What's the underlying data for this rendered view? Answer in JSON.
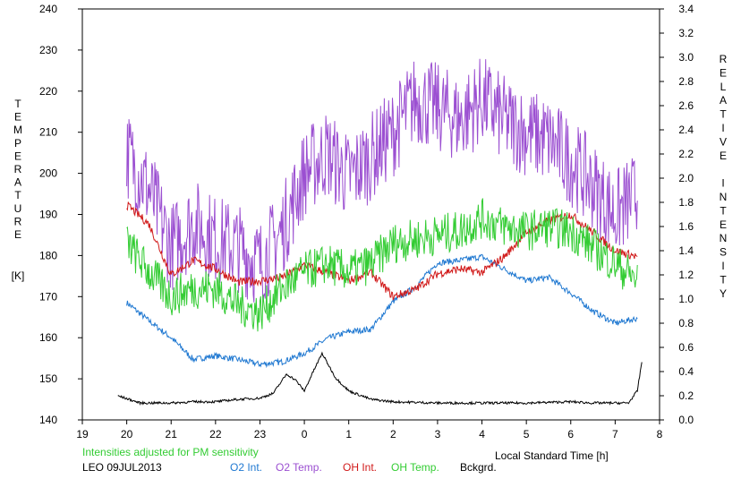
{
  "chart_data": {
    "type": "line",
    "x_unit": "h (local standard time, 19 to 32 = 8 next day)",
    "x_ticks": [
      "19",
      "20",
      "21",
      "22",
      "23",
      "0",
      "1",
      "2",
      "3",
      "4",
      "5",
      "6",
      "7",
      "8"
    ],
    "xlim": [
      19,
      32
    ],
    "y_left": {
      "label": "TEMPERATURE",
      "unit": "[K]",
      "ticks": [
        "140",
        "150",
        "160",
        "170",
        "180",
        "190",
        "200",
        "210",
        "220",
        "230",
        "240"
      ],
      "lim": [
        140,
        240
      ]
    },
    "y_right": {
      "label": "RELATIVE INTENSITY",
      "ticks": [
        "0.0",
        "0.2",
        "0.4",
        "0.6",
        "0.8",
        "1.0",
        "1.2",
        "1.4",
        "1.6",
        "1.8",
        "2.0",
        "2.2",
        "2.4",
        "2.6",
        "2.8",
        "3.0",
        "3.2",
        "3.4"
      ],
      "lim": [
        0,
        3.4
      ]
    },
    "xlabel": "Local Standard Time [h]",
    "note": "Intensities adjusted for PM sensitivity",
    "station": "LEO 09JUL2013",
    "grid": false,
    "series": [
      {
        "name": "O2 Int.",
        "axis": "right",
        "color": "#1f78d1",
        "x": [
          20.0,
          20.5,
          21.0,
          21.5,
          22.0,
          22.5,
          23.0,
          23.5,
          24.0,
          24.5,
          25.0,
          25.5,
          26.0,
          26.5,
          27.0,
          27.5,
          28.0,
          28.5,
          29.0,
          29.5,
          30.0,
          30.5,
          31.0,
          31.5
        ],
        "values": [
          0.97,
          0.82,
          0.68,
          0.5,
          0.53,
          0.5,
          0.46,
          0.48,
          0.55,
          0.67,
          0.73,
          0.75,
          0.98,
          1.1,
          1.3,
          1.32,
          1.35,
          1.25,
          1.15,
          1.18,
          1.05,
          0.9,
          0.8,
          0.84
        ]
      },
      {
        "name": "O2 Temp.",
        "axis": "left",
        "color": "#9b4fd1",
        "x": [
          20.0,
          20.5,
          21.0,
          21.5,
          22.0,
          22.5,
          23.0,
          23.5,
          24.0,
          24.5,
          25.0,
          25.5,
          26.0,
          26.5,
          27.0,
          27.5,
          28.0,
          28.5,
          29.0,
          29.5,
          30.0,
          30.5,
          31.0,
          31.5
        ],
        "values": [
          205,
          196,
          182,
          188,
          184,
          182,
          178,
          186,
          200,
          205,
          199,
          204,
          210,
          218,
          216,
          213,
          218,
          213,
          210,
          208,
          203,
          197,
          190,
          195
        ]
      },
      {
        "name": "OH Int.",
        "axis": "right",
        "color": "#d11a1a",
        "x": [
          20.0,
          20.5,
          21.0,
          21.5,
          22.0,
          22.5,
          23.0,
          23.5,
          24.0,
          24.5,
          25.0,
          25.5,
          26.0,
          26.5,
          27.0,
          27.5,
          28.0,
          28.5,
          29.0,
          29.5,
          30.0,
          30.5,
          31.0,
          31.5
        ],
        "values": [
          1.78,
          1.62,
          1.2,
          1.32,
          1.25,
          1.14,
          1.15,
          1.18,
          1.28,
          1.22,
          1.15,
          1.22,
          1.02,
          1.08,
          1.21,
          1.25,
          1.22,
          1.35,
          1.55,
          1.65,
          1.7,
          1.55,
          1.4,
          1.35
        ]
      },
      {
        "name": "OH Temp.",
        "axis": "left",
        "color": "#33cc33",
        "x": [
          20.0,
          20.5,
          21.0,
          21.5,
          22.0,
          22.5,
          23.0,
          23.5,
          24.0,
          24.5,
          25.0,
          25.5,
          26.0,
          26.5,
          27.0,
          27.5,
          28.0,
          28.5,
          29.0,
          29.5,
          30.0,
          30.5,
          31.0,
          31.5
        ],
        "values": [
          183,
          176,
          170,
          172,
          172,
          168,
          166,
          172,
          176,
          178,
          176,
          178,
          183,
          184,
          185,
          186,
          189,
          187,
          186,
          187,
          186,
          182,
          178,
          174
        ]
      },
      {
        "name": "Bckgrd.",
        "axis": "right",
        "color": "#000000",
        "x": [
          19.8,
          20.3,
          21.0,
          21.5,
          22.0,
          22.5,
          23.0,
          23.3,
          23.6,
          23.8,
          24.0,
          24.2,
          24.4,
          24.7,
          25.0,
          25.5,
          26.0,
          27.0,
          28.0,
          29.0,
          30.0,
          30.5,
          31.0,
          31.3,
          31.5,
          31.6
        ],
        "values": [
          0.2,
          0.14,
          0.14,
          0.15,
          0.15,
          0.17,
          0.18,
          0.22,
          0.38,
          0.33,
          0.24,
          0.4,
          0.55,
          0.35,
          0.24,
          0.17,
          0.15,
          0.14,
          0.14,
          0.14,
          0.15,
          0.14,
          0.14,
          0.14,
          0.24,
          0.48
        ]
      }
    ]
  }
}
